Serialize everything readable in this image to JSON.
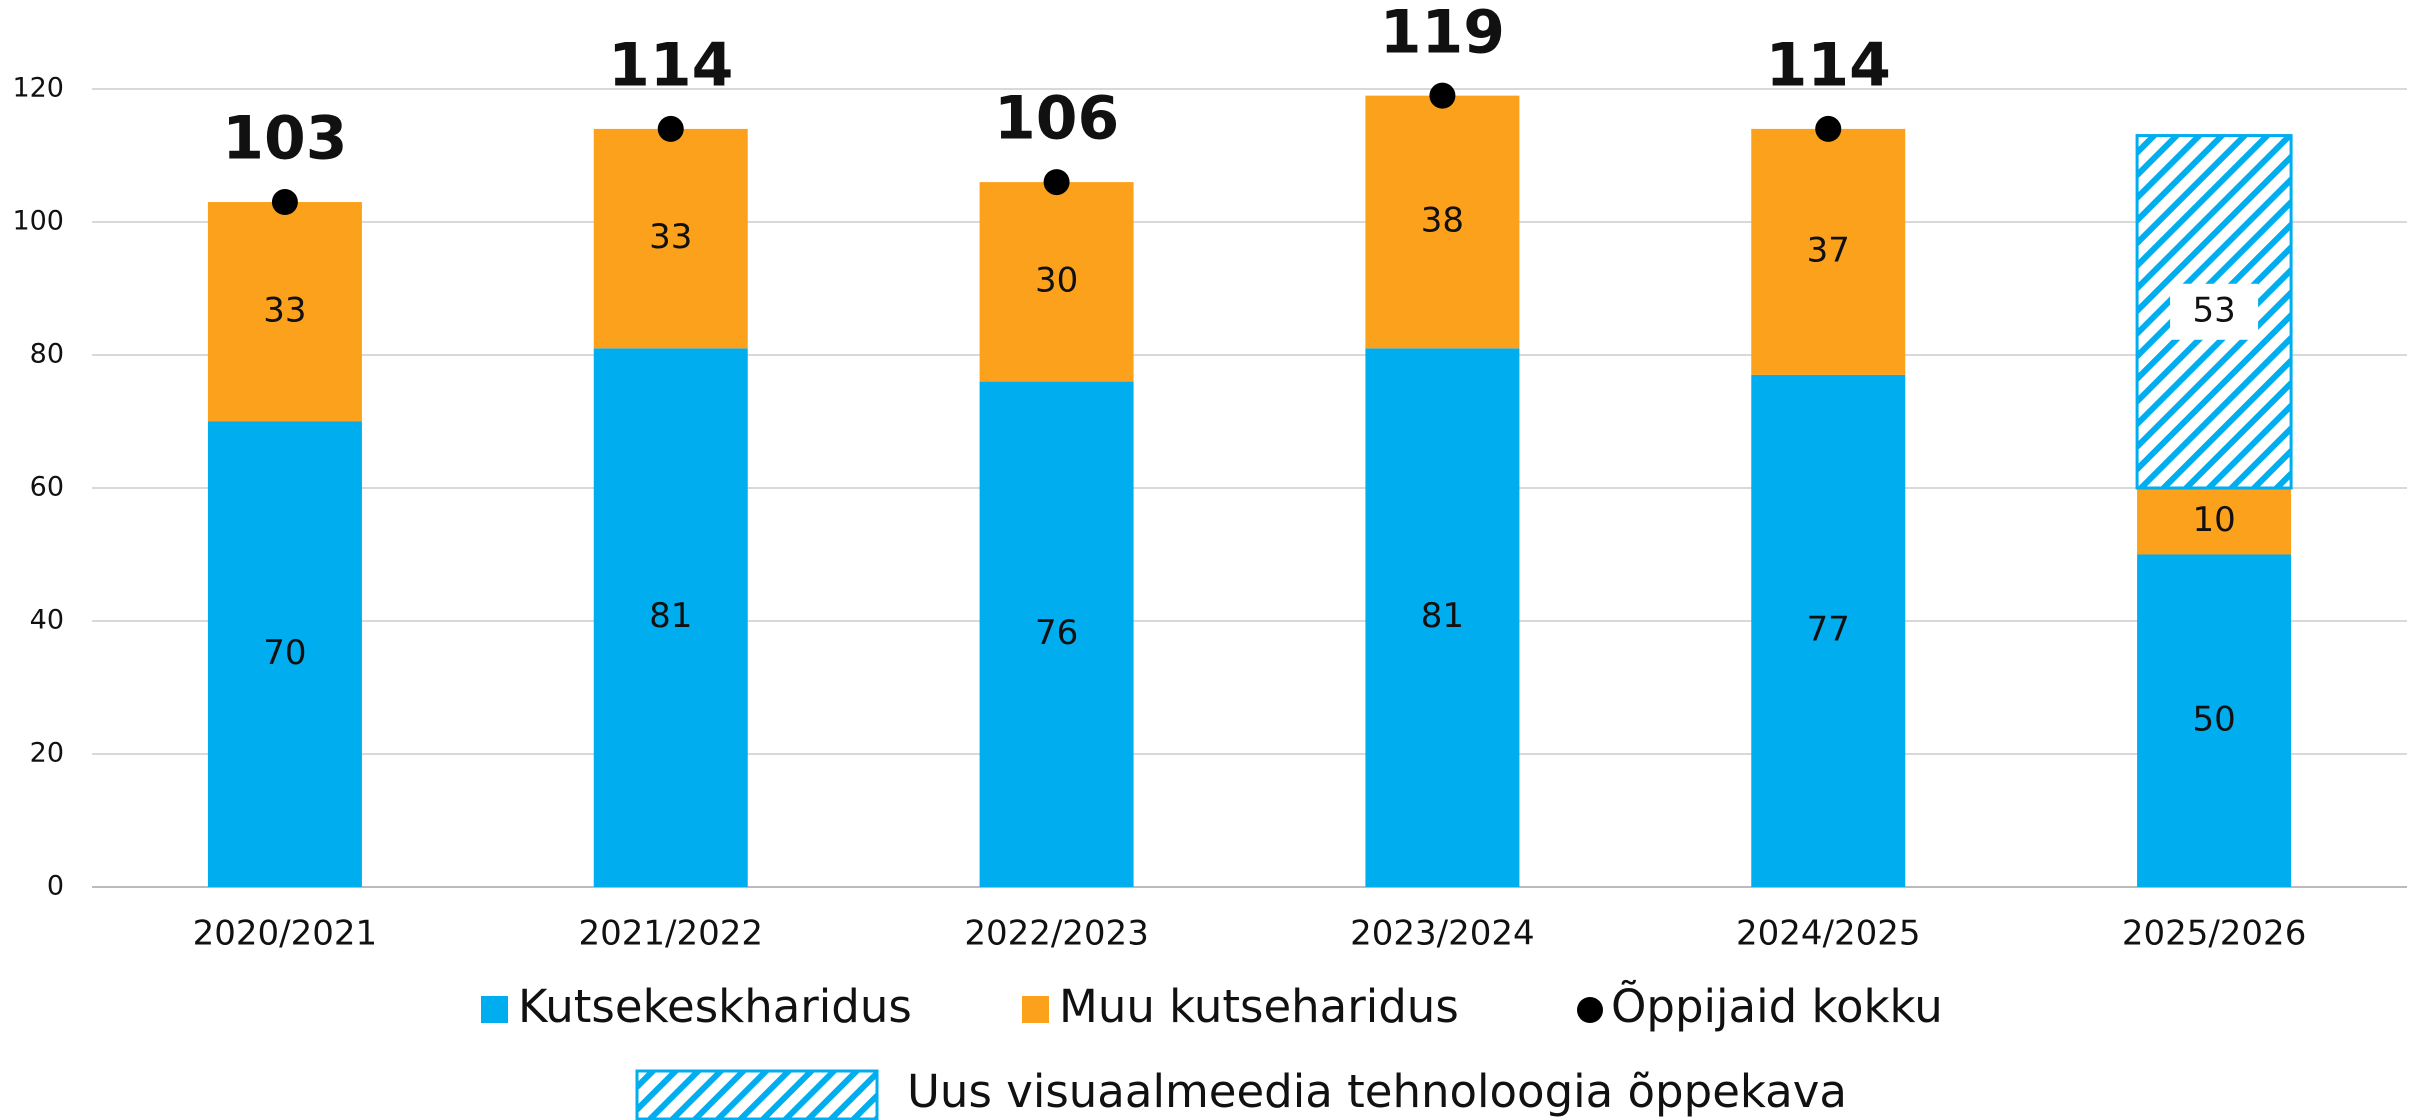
{
  "chart_data": {
    "type": "bar",
    "categories": [
      "2020/2021",
      "2021/2022",
      "2022/2023",
      "2023/2024",
      "2024/2025",
      "2025/2026"
    ],
    "series": [
      {
        "name": "Kutsekeskharidus",
        "color": "#00adef",
        "values": [
          70,
          81,
          76,
          81,
          77,
          50
        ]
      },
      {
        "name": "Muu kutseharidus",
        "color": "#fca11c",
        "values": [
          33,
          33,
          30,
          38,
          37,
          10
        ]
      },
      {
        "name": "Õppijaid kokku",
        "color": "#000000",
        "type": "dot",
        "values": [
          103,
          114,
          106,
          119,
          114,
          null
        ]
      },
      {
        "name": "Uus visuaalmeedia tehnoloogia õppekava",
        "color": "#00adef",
        "pattern": "hatch",
        "values": [
          null,
          null,
          null,
          null,
          null,
          53
        ]
      }
    ],
    "ylim": [
      0,
      120
    ],
    "yticks": [
      0,
      20,
      40,
      60,
      80,
      100,
      120
    ],
    "grid": true
  }
}
